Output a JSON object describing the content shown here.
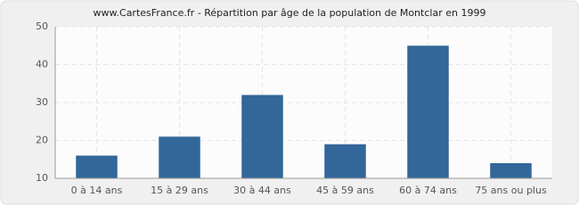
{
  "chart_data": {
    "type": "bar",
    "title": "www.CartesFrance.fr - Répartition par âge de la population de Montclar en 1999",
    "categories": [
      "0 à 14 ans",
      "15 à 29 ans",
      "30 à 44 ans",
      "45 à 59 ans",
      "60 à 74 ans",
      "75 ans ou plus"
    ],
    "values": [
      16,
      21,
      32,
      19,
      45,
      14
    ],
    "color": "#336699",
    "ylim": [
      10,
      50
    ],
    "yticks": [
      10,
      20,
      30,
      40,
      50
    ],
    "grid": true
  }
}
